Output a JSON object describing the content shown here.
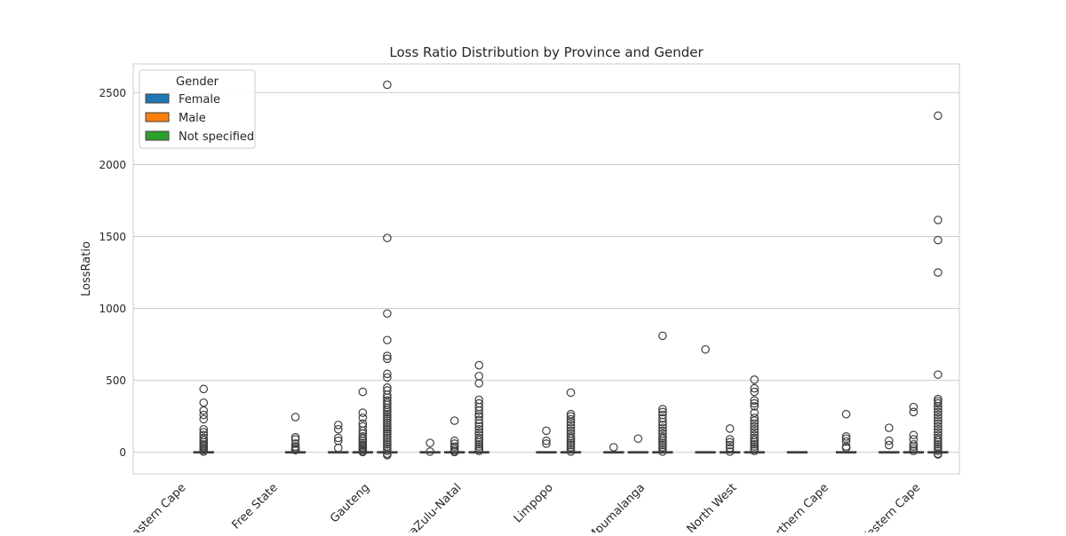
{
  "chart_data": {
    "type": "box",
    "title": "Loss Ratio Distribution by Province and Gender",
    "xlabel": "",
    "ylabel": "LossRatio",
    "ylim": [
      -150,
      2700
    ],
    "yticks": [
      0,
      500,
      1000,
      1500,
      2000,
      2500
    ],
    "grid": "horizontal",
    "legend": {
      "title": "Gender",
      "placement": "top-left",
      "entries": [
        {
          "name": "Female",
          "color": "#1f77b4"
        },
        {
          "name": "Male",
          "color": "#ff7f0e"
        },
        {
          "name": "Not specified",
          "color": "#2ca02c"
        }
      ]
    },
    "categories": [
      "Eastern Cape",
      "Free State",
      "Gauteng",
      "KwaZulu-Natal",
      "Limpopo",
      "Mpumalanga",
      "North West",
      "Northern Cape",
      "Western Cape"
    ],
    "boxes": [
      {
        "category": "Eastern Cape",
        "gender": "Not specified",
        "median": 0,
        "q1": 0,
        "q3": 0,
        "outliers": [
          440,
          345,
          290,
          260,
          230,
          160,
          140,
          120,
          100,
          85,
          70,
          55,
          45,
          35,
          25,
          15,
          5
        ]
      },
      {
        "category": "Free State",
        "gender": "Not specified",
        "median": 0,
        "q1": 0,
        "q3": 0,
        "outliers": [
          245,
          105,
          90,
          60,
          40,
          30,
          20,
          15
        ]
      },
      {
        "category": "Gauteng",
        "gender": "Female",
        "median": 0,
        "q1": 0,
        "q3": 0,
        "outliers": [
          190,
          160,
          100,
          80,
          30
        ]
      },
      {
        "category": "Gauteng",
        "gender": "Male",
        "median": 0,
        "q1": 0,
        "q3": 0,
        "outliers": [
          420,
          275,
          240,
          200,
          180,
          150,
          130,
          110,
          95,
          80,
          65,
          50,
          40,
          30,
          20,
          10,
          2
        ]
      },
      {
        "category": "Gauteng",
        "gender": "Not specified",
        "median": 0,
        "q1": 0,
        "q3": 0,
        "outliers": [
          2555,
          1490,
          965,
          780,
          670,
          650,
          545,
          520,
          450,
          430,
          400,
          380,
          360,
          345,
          330,
          310,
          295,
          280,
          265,
          250,
          235,
          220,
          205,
          190,
          175,
          160,
          145,
          130,
          115,
          100,
          85,
          70,
          55,
          40,
          25,
          10,
          -10,
          -20
        ]
      },
      {
        "category": "KwaZulu-Natal",
        "gender": "Female",
        "median": 0,
        "q1": 0,
        "q3": 0,
        "outliers": [
          65,
          5
        ]
      },
      {
        "category": "KwaZulu-Natal",
        "gender": "Male",
        "median": 0,
        "q1": 0,
        "q3": 0,
        "outliers": [
          220,
          80,
          60,
          40,
          25,
          10,
          2
        ]
      },
      {
        "category": "KwaZulu-Natal",
        "gender": "Not specified",
        "median": 0,
        "q1": 0,
        "q3": 0,
        "outliers": [
          605,
          530,
          480,
          365,
          340,
          315,
          290,
          265,
          250,
          225,
          200,
          180,
          160,
          140,
          120,
          100,
          85,
          70,
          55,
          40,
          25,
          10
        ]
      },
      {
        "category": "Limpopo",
        "gender": "Male",
        "median": 0,
        "q1": 0,
        "q3": 0,
        "outliers": [
          150,
          80,
          60
        ]
      },
      {
        "category": "Limpopo",
        "gender": "Not specified",
        "median": 0,
        "q1": 0,
        "q3": 0,
        "outliers": [
          415,
          265,
          250,
          230,
          210,
          190,
          170,
          150,
          130,
          110,
          95,
          80,
          65,
          50,
          35,
          20,
          5
        ]
      },
      {
        "category": "Mpumalanga",
        "gender": "Female",
        "median": 0,
        "q1": 0,
        "q3": 0,
        "outliers": [
          35
        ]
      },
      {
        "category": "Mpumalanga",
        "gender": "Male",
        "median": 0,
        "q1": 0,
        "q3": 0,
        "outliers": [
          95
        ]
      },
      {
        "category": "Mpumalanga",
        "gender": "Not specified",
        "median": 0,
        "q1": 0,
        "q3": 0,
        "outliers": [
          810,
          300,
          280,
          260,
          235,
          210,
          190,
          170,
          150,
          130,
          110,
          95,
          80,
          65,
          50,
          35,
          20,
          5
        ]
      },
      {
        "category": "North West",
        "gender": "Female",
        "median": 0,
        "q1": 0,
        "q3": 0,
        "outliers": [
          715
        ]
      },
      {
        "category": "North West",
        "gender": "Male",
        "median": 0,
        "q1": 0,
        "q3": 0,
        "outliers": [
          165,
          90,
          70,
          50,
          30,
          5
        ]
      },
      {
        "category": "North West",
        "gender": "Not specified",
        "median": 0,
        "q1": 0,
        "q3": 0,
        "outliers": [
          505,
          445,
          420,
          360,
          340,
          320,
          275,
          240,
          220,
          200,
          180,
          160,
          140,
          120,
          100,
          85,
          70,
          55,
          40,
          25,
          10
        ]
      },
      {
        "category": "Northern Cape",
        "gender": "Female",
        "median": 0,
        "q1": 0,
        "q3": 0,
        "outliers": []
      },
      {
        "category": "Northern Cape",
        "gender": "Not specified",
        "median": 0,
        "q1": 0,
        "q3": 0,
        "outliers": [
          265,
          110,
          95,
          75,
          40,
          30
        ]
      },
      {
        "category": "Western Cape",
        "gender": "Female",
        "median": 0,
        "q1": 0,
        "q3": 0,
        "outliers": [
          170,
          80,
          50
        ]
      },
      {
        "category": "Western Cape",
        "gender": "Male",
        "median": 0,
        "q1": 0,
        "q3": 0,
        "outliers": [
          315,
          280,
          120,
          90,
          55,
          40,
          25,
          10
        ]
      },
      {
        "category": "Western Cape",
        "gender": "Not specified",
        "median": 0,
        "q1": 0,
        "q3": 0,
        "outliers": [
          2340,
          1615,
          1475,
          1250,
          540,
          370,
          355,
          340,
          320,
          300,
          280,
          260,
          240,
          220,
          200,
          180,
          160,
          140,
          120,
          100,
          85,
          70,
          55,
          40,
          25,
          10,
          -10,
          -15
        ]
      }
    ]
  }
}
